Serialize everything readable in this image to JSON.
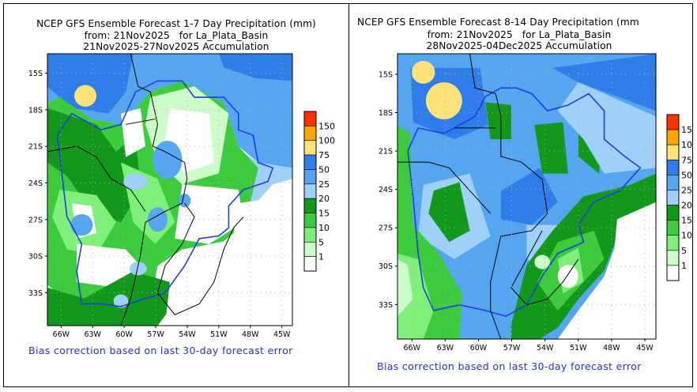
{
  "panels": [
    {
      "id": "week1",
      "title_line1": "NCEP GFS Ensemble Forecast 1-7 Day Precipitation (mm)",
      "title_line2": "from: 21Nov2025   for La_Plata_Basin",
      "title_line3": "21Nov2025-27Nov2025 Accumulation",
      "footnote": "Bias correction based on last 30-day forecast error"
    },
    {
      "id": "week2",
      "title_line1": "NCEP GFS Ensemble Forecast 8-14 Day Precipitation (mm",
      "title_line2": "from: 21Nov2025   for La_Plata_Basin",
      "title_line3": "28Nov2025-04Dec2025 Accumulation",
      "footnote": "Bias correction based on last 30-day forecast error"
    }
  ],
  "axes": {
    "lat_ticks": [
      "15S",
      "18S",
      "21S",
      "24S",
      "27S",
      "30S",
      "33S"
    ],
    "lat_values": [
      -15,
      -18,
      -21,
      -24,
      -27,
      -30,
      -33
    ],
    "lon_ticks": [
      "66W",
      "63W",
      "60W",
      "57W",
      "54W",
      "51W",
      "48W",
      "45W"
    ],
    "lon_values": [
      -66,
      -63,
      -60,
      -57,
      -54,
      -51,
      -48,
      -45
    ],
    "lat_range": [
      -35.7,
      -13.4
    ],
    "lon_range": [
      -67.3,
      -44.0
    ]
  },
  "colorbar": {
    "levels_full": [
      "150",
      "100",
      "75",
      "50",
      "25",
      "20",
      "15",
      "10",
      "5",
      "1"
    ],
    "levels_right_visible": [
      "15",
      "10",
      "75",
      "50",
      "25",
      "20",
      "15",
      "10",
      "5",
      "1"
    ],
    "colors": [
      "#ff3300",
      "#ffa500",
      "#ffe27a",
      "#2e7de9",
      "#56a5f0",
      "#9fd0fa",
      "#12991c",
      "#3ccb3c",
      "#7ef07a",
      "#ccfcc8",
      "#ffffff"
    ]
  }
}
